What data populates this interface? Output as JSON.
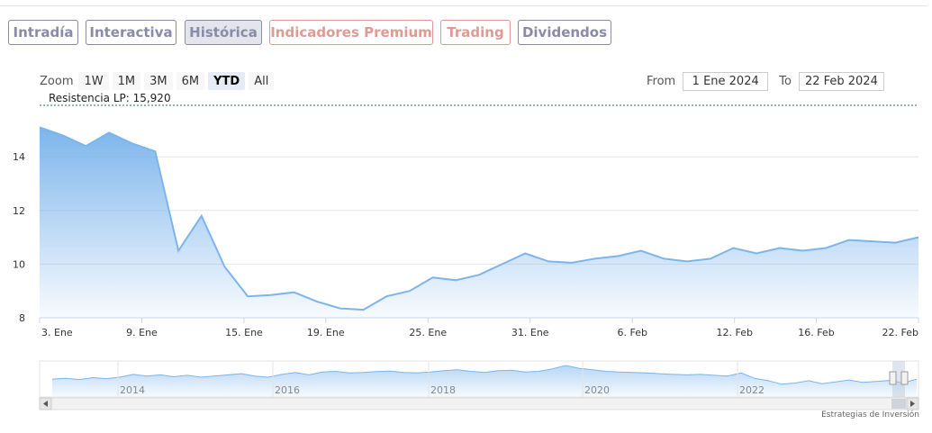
{
  "tabs": [
    {
      "label": "Intradía",
      "color": "#8b8aa8",
      "active": false
    },
    {
      "label": "Interactiva",
      "color": "#8b8aa8",
      "active": false
    },
    {
      "label": "Histórica",
      "color": "#8b8aa8",
      "active": true
    },
    {
      "label": "Indicadores Premium",
      "color": "#e09a94",
      "active": false
    },
    {
      "label": "Trading",
      "color": "#e09a94",
      "active": false
    },
    {
      "label": "Dividendos",
      "color": "#8b8aa8",
      "active": false
    }
  ],
  "zoom": {
    "label": "Zoom",
    "buttons": [
      "1W",
      "1M",
      "3M",
      "6M",
      "YTD",
      "All"
    ],
    "selected": "YTD"
  },
  "range": {
    "from_label": "From",
    "from_value": "1 Ene 2024",
    "to_label": "To",
    "to_value": "22 Feb 2024"
  },
  "credit": "Estrategias de Inversión",
  "chart_data": {
    "type": "area",
    "resistance_label": "Resistencia LP: 15,920",
    "resistance_value": 15.92,
    "y_ticks": [
      8,
      10,
      12,
      14
    ],
    "ylim": [
      8,
      15.92
    ],
    "x_tick_labels": [
      "3. Ene",
      "9. Ene",
      "15. Ene",
      "19. Ene",
      "25. Ene",
      "31. Ene",
      "6. Feb",
      "12. Feb",
      "16. Feb",
      "22. Feb"
    ],
    "x_tick_index": [
      0,
      5,
      10,
      14,
      19,
      24,
      29,
      34,
      38,
      43
    ],
    "values": [
      15.1,
      14.8,
      14.4,
      14.9,
      14.5,
      14.2,
      10.5,
      11.8,
      9.9,
      8.8,
      8.85,
      8.95,
      8.6,
      8.35,
      8.3,
      8.8,
      9.0,
      9.5,
      9.4,
      9.6,
      10.0,
      10.4,
      10.1,
      10.05,
      10.2,
      10.3,
      10.5,
      10.2,
      10.1,
      10.2,
      10.6,
      10.4,
      10.6,
      10.5,
      10.6,
      10.9,
      10.85,
      10.8,
      11.0
    ],
    "navigator": {
      "year_labels": [
        "2014",
        "2016",
        "2018",
        "2020",
        "2022"
      ],
      "values": [
        0.42,
        0.45,
        0.4,
        0.48,
        0.44,
        0.5,
        0.62,
        0.55,
        0.6,
        0.52,
        0.58,
        0.5,
        0.55,
        0.6,
        0.65,
        0.55,
        0.5,
        0.62,
        0.7,
        0.6,
        0.72,
        0.75,
        0.68,
        0.7,
        0.74,
        0.76,
        0.7,
        0.68,
        0.72,
        0.78,
        0.82,
        0.75,
        0.7,
        0.78,
        0.8,
        0.72,
        0.75,
        0.85,
        1.0,
        0.88,
        0.82,
        0.75,
        0.72,
        0.7,
        0.68,
        0.65,
        0.62,
        0.6,
        0.62,
        0.58,
        0.55,
        0.68,
        0.45,
        0.35,
        0.2,
        0.25,
        0.35,
        0.22,
        0.3,
        0.38,
        0.28,
        0.32,
        0.36,
        0.25,
        0.42
      ]
    }
  }
}
